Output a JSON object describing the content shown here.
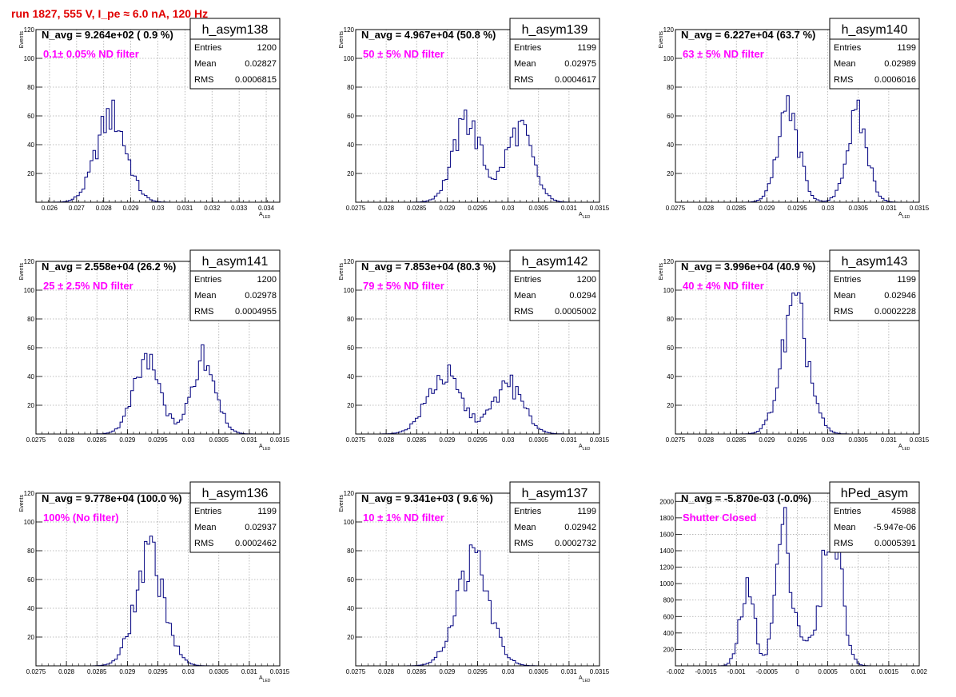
{
  "page": {
    "run_title": "run 1827,   555 V, I_pe ≈ 6.0 nA, 120 Hz"
  },
  "colors": {
    "title": "#e00000",
    "histogram": "#00007f",
    "filter_text": "#ff00ff",
    "grid": "#aaaaaa"
  },
  "chart_data": [
    {
      "type": "histogram",
      "name": "h_asym138",
      "navg": "N_avg = 9.264e+02 ( 0.9 %)",
      "filter": "0.1± 0.05% ND filter",
      "stats": {
        "entries": "1200",
        "mean": "0.02827",
        "rms": "0.0006815"
      },
      "xlabel": "A_LED",
      "ylabel": "Events",
      "xlim": [
        0.0255,
        0.0345
      ],
      "ylim": [
        0,
        120
      ],
      "xticks": [
        0.026,
        0.027,
        0.028,
        0.029,
        0.03,
        0.031,
        0.032,
        0.033,
        0.034
      ],
      "xtick_labels": [
        "0.026",
        "0.027",
        "0.028",
        "0.029",
        "0.03",
        "0.031",
        "0.032",
        "0.033",
        "0.034"
      ],
      "yticks": [
        20,
        40,
        60,
        80,
        100,
        120
      ],
      "ytick_labels": [
        "20",
        "40",
        "60",
        "80",
        "100",
        "120"
      ],
      "grid": true,
      "peaks": [
        {
          "mu": 0.02828,
          "sigma": 0.00055,
          "h": 60
        }
      ],
      "peak_bins": [
        {
          "x": 0.02833,
          "y": 71
        }
      ]
    },
    {
      "type": "histogram",
      "name": "h_asym139",
      "navg": "N_avg = 4.967e+04 (50.8 %)",
      "filter": "50 ± 5% ND filter",
      "stats": {
        "entries": "1199",
        "mean": "0.02975",
        "rms": "0.0004617"
      },
      "xlabel": "A_LED",
      "ylabel": "Events",
      "xlim": [
        0.0275,
        0.0315
      ],
      "ylim": [
        0,
        120
      ],
      "xticks": [
        0.0275,
        0.028,
        0.0285,
        0.029,
        0.0295,
        0.03,
        0.0305,
        0.031,
        0.0315
      ],
      "xtick_labels": [
        "0.0275",
        "0.028",
        "0.0285",
        "0.029",
        "0.0295",
        "0.03",
        "0.0305",
        "0.031",
        "0.0315"
      ],
      "yticks": [
        20,
        40,
        60,
        80,
        100,
        120
      ],
      "ytick_labels": [
        "20",
        "40",
        "60",
        "80",
        "100",
        "120"
      ],
      "grid": true,
      "peaks": [
        {
          "mu": 0.02933,
          "sigma": 0.00023,
          "h": 55
        },
        {
          "mu": 0.03018,
          "sigma": 0.00022,
          "h": 50
        }
      ],
      "peak_bins": [
        {
          "x": 0.02932,
          "y": 64
        },
        {
          "x": 0.03022,
          "y": 57
        }
      ]
    },
    {
      "type": "histogram",
      "name": "h_asym140",
      "navg": "N_avg = 6.227e+04 (63.7 %)",
      "filter": "63 ± 5% ND filter",
      "stats": {
        "entries": "1199",
        "mean": "0.02989",
        "rms": "0.0006016"
      },
      "xlabel": "A_LED",
      "ylabel": "Events",
      "xlim": [
        0.0275,
        0.0315
      ],
      "ylim": [
        0,
        120
      ],
      "xticks": [
        0.0275,
        0.028,
        0.0285,
        0.029,
        0.0295,
        0.03,
        0.0305,
        0.031,
        0.0315
      ],
      "xtick_labels": [
        "0.0275",
        "0.028",
        "0.0285",
        "0.029",
        "0.0295",
        "0.03",
        "0.0305",
        "0.031",
        "0.0315"
      ],
      "yticks": [
        20,
        40,
        60,
        80,
        100,
        120
      ],
      "ytick_labels": [
        "20",
        "40",
        "60",
        "80",
        "100",
        "120"
      ],
      "grid": true,
      "peaks": [
        {
          "mu": 0.02935,
          "sigma": 0.00018,
          "h": 60
        },
        {
          "mu": 0.03048,
          "sigma": 0.00017,
          "h": 58
        }
      ],
      "peak_bins": [
        {
          "x": 0.02935,
          "y": 74
        },
        {
          "x": 0.03052,
          "y": 71
        }
      ]
    },
    {
      "type": "histogram",
      "name": "h_asym141",
      "navg": "N_avg = 2.558e+04 (26.2 %)",
      "filter": "25 ± 2.5% ND filter",
      "stats": {
        "entries": "1200",
        "mean": "0.02978",
        "rms": "0.0004955"
      },
      "xlabel": "A_LED",
      "ylabel": "Events",
      "xlim": [
        0.0275,
        0.0315
      ],
      "ylim": [
        0,
        120
      ],
      "xticks": [
        0.0275,
        0.028,
        0.0285,
        0.029,
        0.0295,
        0.03,
        0.0305,
        0.031,
        0.0315
      ],
      "xtick_labels": [
        "0.0275",
        "0.028",
        "0.0285",
        "0.029",
        "0.0295",
        "0.03",
        "0.0305",
        "0.031",
        "0.0315"
      ],
      "yticks": [
        20,
        40,
        60,
        80,
        100,
        120
      ],
      "ytick_labels": [
        "20",
        "40",
        "60",
        "80",
        "100",
        "120"
      ],
      "grid": true,
      "peaks": [
        {
          "mu": 0.02932,
          "sigma": 0.00022,
          "h": 48
        },
        {
          "mu": 0.03026,
          "sigma": 0.0002,
          "h": 52
        }
      ],
      "peak_bins": [
        {
          "x": 0.02932,
          "y": 56
        },
        {
          "x": 0.03022,
          "y": 62
        }
      ]
    },
    {
      "type": "histogram",
      "name": "h_asym142",
      "navg": "N_avg = 7.853e+04 (80.3 %)",
      "filter": "79 ± 5% ND filter",
      "stats": {
        "entries": "1200",
        "mean": "0.0294",
        "rms": "0.0005002"
      },
      "xlabel": "A_LED",
      "ylabel": "Events",
      "xlim": [
        0.0275,
        0.0315
      ],
      "ylim": [
        0,
        120
      ],
      "xticks": [
        0.0275,
        0.028,
        0.0285,
        0.029,
        0.0295,
        0.03,
        0.0305,
        0.031,
        0.0315
      ],
      "xtick_labels": [
        "0.0275",
        "0.028",
        "0.0285",
        "0.029",
        "0.0295",
        "0.03",
        "0.0305",
        "0.031",
        "0.0315"
      ],
      "yticks": [
        20,
        40,
        60,
        80,
        100,
        120
      ],
      "ytick_labels": [
        "20",
        "40",
        "60",
        "80",
        "100",
        "120"
      ],
      "grid": true,
      "peaks": [
        {
          "mu": 0.02895,
          "sigma": 0.00028,
          "h": 40
        },
        {
          "mu": 0.03,
          "sigma": 0.00025,
          "h": 33
        }
      ],
      "peak_bins": [
        {
          "x": 0.02905,
          "y": 48
        },
        {
          "x": 0.03005,
          "y": 41
        }
      ]
    },
    {
      "type": "histogram",
      "name": "h_asym143",
      "navg": "N_avg = 3.996e+04 (40.9 %)",
      "filter": "40 ± 4% ND filter",
      "stats": {
        "entries": "1199",
        "mean": "0.02946",
        "rms": "0.0002228"
      },
      "xlabel": "A_LED",
      "ylabel": "Events",
      "xlim": [
        0.0275,
        0.0315
      ],
      "ylim": [
        0,
        120
      ],
      "xticks": [
        0.0275,
        0.028,
        0.0285,
        0.029,
        0.0295,
        0.03,
        0.0305,
        0.031,
        0.0315
      ],
      "xtick_labels": [
        "0.0275",
        "0.028",
        "0.0285",
        "0.029",
        "0.0295",
        "0.03",
        "0.0305",
        "0.031",
        "0.0315"
      ],
      "yticks": [
        20,
        40,
        60,
        80,
        100,
        120
      ],
      "ytick_labels": [
        "20",
        "40",
        "60",
        "80",
        "100",
        "120"
      ],
      "grid": true,
      "peaks": [
        {
          "mu": 0.02946,
          "sigma": 0.00022,
          "h": 85
        }
      ],
      "peak_bins": [
        {
          "x": 0.02942,
          "y": 98
        }
      ]
    },
    {
      "type": "histogram",
      "name": "h_asym136",
      "navg": "N_avg = 9.778e+04 (100.0 %)",
      "filter": "100% (No filter)",
      "stats": {
        "entries": "1199",
        "mean": "0.02937",
        "rms": "0.0002462"
      },
      "xlabel": "A_LED",
      "ylabel": "Events",
      "xlim": [
        0.0275,
        0.0315
      ],
      "ylim": [
        0,
        120
      ],
      "xticks": [
        0.0275,
        0.028,
        0.0285,
        0.029,
        0.0295,
        0.03,
        0.0305,
        0.031,
        0.0315
      ],
      "xtick_labels": [
        "0.0275",
        "0.028",
        "0.0285",
        "0.029",
        "0.0295",
        "0.03",
        "0.0305",
        "0.031",
        "0.0315"
      ],
      "yticks": [
        20,
        40,
        60,
        80,
        100,
        120
      ],
      "ytick_labels": [
        "20",
        "40",
        "60",
        "80",
        "100",
        "120"
      ],
      "grid": true,
      "peaks": [
        {
          "mu": 0.02937,
          "sigma": 0.00024,
          "h": 75
        }
      ],
      "peak_bins": [
        {
          "x": 0.02945,
          "y": 86
        }
      ]
    },
    {
      "type": "histogram",
      "name": "h_asym137",
      "navg": "N_avg = 9.341e+03 ( 9.6 %)",
      "filter": "10 ± 1% ND filter",
      "stats": {
        "entries": "1199",
        "mean": "0.02942",
        "rms": "0.0002732"
      },
      "xlabel": "A_LED",
      "ylabel": "Events",
      "xlim": [
        0.0275,
        0.0315
      ],
      "ylim": [
        0,
        120
      ],
      "xticks": [
        0.0275,
        0.028,
        0.0285,
        0.029,
        0.0295,
        0.03,
        0.0305,
        0.031,
        0.0315
      ],
      "xtick_labels": [
        "0.0275",
        "0.028",
        "0.0285",
        "0.029",
        "0.0295",
        "0.03",
        "0.0305",
        "0.031",
        "0.0315"
      ],
      "yticks": [
        20,
        40,
        60,
        80,
        100,
        120
      ],
      "ytick_labels": [
        "20",
        "40",
        "60",
        "80",
        "100",
        "120"
      ],
      "grid": true,
      "peaks": [
        {
          "mu": 0.02942,
          "sigma": 0.00027,
          "h": 72
        }
      ],
      "peak_bins": [
        {
          "x": 0.02952,
          "y": 80
        }
      ]
    },
    {
      "type": "histogram",
      "name": "hPed_asym",
      "navg": "N_avg = -5.870e-03 (-0.0%)",
      "filter": "Shutter Closed",
      "stats": {
        "entries": "45988",
        "mean": "-5.947e-06",
        "rms": "0.0005391"
      },
      "xlabel": "",
      "ylabel": "",
      "xlim": [
        -0.002,
        0.002
      ],
      "ylim": [
        0,
        2100
      ],
      "xticks": [
        -0.002,
        -0.0015,
        -0.001,
        -0.0005,
        0,
        0.0005,
        0.001,
        0.0015,
        0.002
      ],
      "xtick_labels": [
        "-0.002",
        "-0.0015",
        "-0.001",
        "-0.0005",
        "0",
        "0.0005",
        "0.001",
        "0.0015",
        "0.002"
      ],
      "yticks": [
        200,
        400,
        600,
        800,
        1000,
        1200,
        1400,
        1600,
        1800,
        2000
      ],
      "ytick_labels": [
        "200",
        "400",
        "600",
        "800",
        "1000",
        "1200",
        "1400",
        "1600",
        "1800",
        "2000"
      ],
      "grid": true,
      "peaks": [
        {
          "mu": -0.00082,
          "sigma": 0.00012,
          "h": 900
        },
        {
          "mu": -0.00024,
          "sigma": 0.00012,
          "h": 1500
        },
        {
          "mu": 0.0,
          "sigma": 0.0002,
          "h": 350
        },
        {
          "mu": 0.00057,
          "sigma": 0.00015,
          "h": 1850
        }
      ],
      "peak_bins": [
        {
          "x": -0.00025,
          "y": 1720
        },
        {
          "x": 0.00058,
          "y": 2030
        }
      ]
    }
  ]
}
